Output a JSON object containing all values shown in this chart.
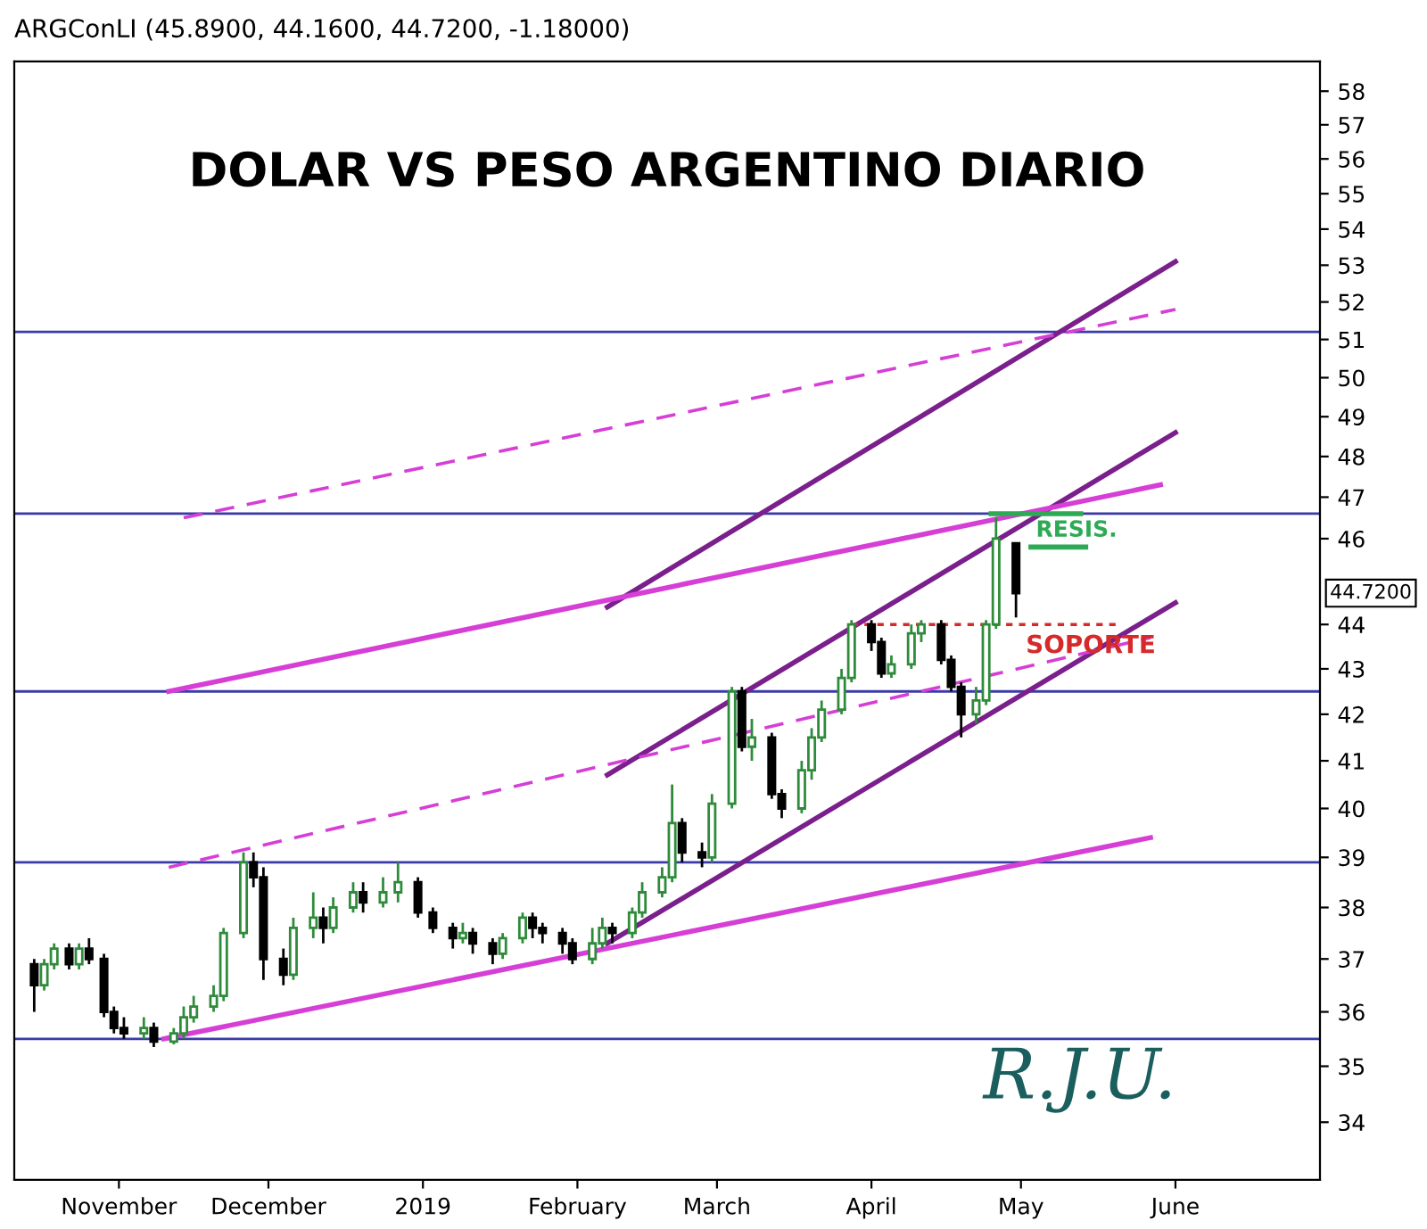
{
  "chart_data": {
    "type": "candlestick",
    "title": "DOLAR VS PESO ARGENTINO DIARIO",
    "subtitle": "ARGConLI (45.8900, 44.1600, 44.7200, -1.18000)",
    "colors": [
      "#000000",
      "#2e8b3a",
      "#2e8b3a",
      "#000000",
      "#2e8b3a",
      "#000000",
      "#000000",
      "#000000",
      "#000000",
      "#2e8b3a",
      "#000000",
      "#2e8b3a",
      "#2e8b3a",
      "#2e8b3a",
      "#2e8b3a",
      "#2e8b3a",
      "#2e8b3a",
      "#000000",
      "#000000",
      "#000000",
      "#2e8b3a",
      "#2e8b3a",
      "#000000",
      "#2e8b3a",
      "#2e8b3a",
      "#000000",
      "#2e8b3a",
      "#2e8b3a",
      "#000000",
      "#000000",
      "#000000",
      "#2e8b3a",
      "#000000",
      "#000000",
      "#2e8b3a",
      "#2e8b3a",
      "#000000",
      "#000000",
      "#000000",
      "#000000",
      "#2e8b3a",
      "#2e8b3a",
      "#000000",
      "#2e8b3a",
      "#2e8b3a",
      "#2e8b3a",
      "#2e8b3a",
      "#000000",
      "#000000",
      "#2e8b3a",
      "#2e8b3a",
      "#000000",
      "#2e8b3a",
      "#000000",
      "#000000",
      "#2e8b3a",
      "#2e8b3a",
      "#2e8b3a",
      "#2e8b3a",
      "#2e8b3a",
      "#000000",
      "#000000",
      "#2e8b3a",
      "#2e8b3a",
      "#2e8b3a",
      "#000000",
      "#000000",
      "#000000",
      "#2e8b3a",
      "#2e8b3a",
      "#2e8b3a",
      "#000000"
    ],
    "x": [
      "2018-10-15",
      "2018-10-17",
      "2018-10-19",
      "2018-10-22",
      "2018-10-24",
      "2018-10-26",
      "2018-10-29",
      "2018-10-31",
      "2018-11-02",
      "2018-11-06",
      "2018-11-08",
      "2018-11-12",
      "2018-11-14",
      "2018-11-16",
      "2018-11-20",
      "2018-11-22",
      "2018-11-26",
      "2018-11-28",
      "2018-11-30",
      "2018-12-04",
      "2018-12-06",
      "2018-12-10",
      "2018-12-12",
      "2018-12-14",
      "2018-12-18",
      "2018-12-20",
      "2018-12-24",
      "2018-12-27",
      "2018-12-31",
      "2019-01-03",
      "2019-01-07",
      "2019-01-09",
      "2019-01-11",
      "2019-01-15",
      "2019-01-17",
      "2019-01-21",
      "2019-01-23",
      "2019-01-25",
      "2019-01-29",
      "2019-01-31",
      "2019-02-04",
      "2019-02-06",
      "2019-02-08",
      "2019-02-12",
      "2019-02-14",
      "2019-02-18",
      "2019-02-20",
      "2019-02-22",
      "2019-02-26",
      "2019-02-28",
      "2019-03-04",
      "2019-03-06",
      "2019-03-08",
      "2019-03-12",
      "2019-03-14",
      "2019-03-18",
      "2019-03-20",
      "2019-03-22",
      "2019-03-26",
      "2019-03-28",
      "2019-04-01",
      "2019-04-03",
      "2019-04-05",
      "2019-04-09",
      "2019-04-11",
      "2019-04-15",
      "2019-04-17",
      "2019-04-19",
      "2019-04-22",
      "2019-04-24",
      "2019-04-26",
      "2019-04-30"
    ],
    "ohlc": [
      [
        36.9,
        37.0,
        36.0,
        36.5
      ],
      [
        36.5,
        37.0,
        36.4,
        36.9
      ],
      [
        36.9,
        37.3,
        36.8,
        37.2
      ],
      [
        37.2,
        37.3,
        36.8,
        36.9
      ],
      [
        36.9,
        37.3,
        36.8,
        37.2
      ],
      [
        37.2,
        37.4,
        36.9,
        37.0
      ],
      [
        37.0,
        37.1,
        35.9,
        36.0
      ],
      [
        36.0,
        36.1,
        35.6,
        35.7
      ],
      [
        35.7,
        35.9,
        35.5,
        35.6
      ],
      [
        35.6,
        35.9,
        35.5,
        35.7
      ],
      [
        35.7,
        35.8,
        35.35,
        35.45
      ],
      [
        35.45,
        35.7,
        35.4,
        35.6
      ],
      [
        35.6,
        36.1,
        35.5,
        35.9
      ],
      [
        35.9,
        36.3,
        35.8,
        36.1
      ],
      [
        36.1,
        36.5,
        36.0,
        36.3
      ],
      [
        36.3,
        37.6,
        36.2,
        37.5
      ],
      [
        37.5,
        39.1,
        37.4,
        38.9
      ],
      [
        38.9,
        39.1,
        38.4,
        38.6
      ],
      [
        38.6,
        38.8,
        36.6,
        37.0
      ],
      [
        37.0,
        37.2,
        36.5,
        36.7
      ],
      [
        36.7,
        37.8,
        36.6,
        37.6
      ],
      [
        37.6,
        38.3,
        37.4,
        37.8
      ],
      [
        37.8,
        38.0,
        37.3,
        37.6
      ],
      [
        37.6,
        38.2,
        37.5,
        38.0
      ],
      [
        38.0,
        38.5,
        37.9,
        38.3
      ],
      [
        38.3,
        38.5,
        37.9,
        38.1
      ],
      [
        38.1,
        38.6,
        38.0,
        38.3
      ],
      [
        38.3,
        38.9,
        38.1,
        38.5
      ],
      [
        38.5,
        38.6,
        37.8,
        37.9
      ],
      [
        37.9,
        38.0,
        37.5,
        37.6
      ],
      [
        37.6,
        37.7,
        37.2,
        37.4
      ],
      [
        37.4,
        37.7,
        37.3,
        37.5
      ],
      [
        37.5,
        37.6,
        37.1,
        37.3
      ],
      [
        37.3,
        37.4,
        36.9,
        37.1
      ],
      [
        37.1,
        37.5,
        37.0,
        37.4
      ],
      [
        37.4,
        37.9,
        37.3,
        37.8
      ],
      [
        37.8,
        37.9,
        37.4,
        37.6
      ],
      [
        37.6,
        37.7,
        37.3,
        37.5
      ],
      [
        37.5,
        37.6,
        37.1,
        37.3
      ],
      [
        37.3,
        37.4,
        36.9,
        37.0
      ],
      [
        37.0,
        37.6,
        36.9,
        37.3
      ],
      [
        37.3,
        37.8,
        37.2,
        37.6
      ],
      [
        37.6,
        37.7,
        37.3,
        37.5
      ],
      [
        37.5,
        38.0,
        37.4,
        37.9
      ],
      [
        37.9,
        38.5,
        37.8,
        38.3
      ],
      [
        38.3,
        38.8,
        38.2,
        38.6
      ],
      [
        38.6,
        40.5,
        38.5,
        39.7
      ],
      [
        39.7,
        39.8,
        38.9,
        39.1
      ],
      [
        39.1,
        39.3,
        38.8,
        39.0
      ],
      [
        39.0,
        40.3,
        38.9,
        40.1
      ],
      [
        40.1,
        42.6,
        40.0,
        42.5
      ],
      [
        42.5,
        42.6,
        41.2,
        41.3
      ],
      [
        41.3,
        41.9,
        41.0,
        41.5
      ],
      [
        41.5,
        41.6,
        40.2,
        40.3
      ],
      [
        40.3,
        40.4,
        39.8,
        40.0
      ],
      [
        40.0,
        41.0,
        39.9,
        40.8
      ],
      [
        40.8,
        41.7,
        40.6,
        41.5
      ],
      [
        41.5,
        42.3,
        41.4,
        42.1
      ],
      [
        42.1,
        43.0,
        42.0,
        42.8
      ],
      [
        42.8,
        44.1,
        42.7,
        44.0
      ],
      [
        44.0,
        44.1,
        43.4,
        43.6
      ],
      [
        43.6,
        43.7,
        42.8,
        42.9
      ],
      [
        42.9,
        43.3,
        42.8,
        43.1
      ],
      [
        43.1,
        44.0,
        43.0,
        43.8
      ],
      [
        43.8,
        44.1,
        43.6,
        44.0
      ],
      [
        44.0,
        44.1,
        43.1,
        43.2
      ],
      [
        43.2,
        43.3,
        42.5,
        42.6
      ],
      [
        42.6,
        42.7,
        41.5,
        42.0
      ],
      [
        42.0,
        42.6,
        41.8,
        42.3
      ],
      [
        42.3,
        44.1,
        42.2,
        44.0
      ],
      [
        44.0,
        46.5,
        43.9,
        46.0
      ],
      [
        45.89,
        45.89,
        44.16,
        44.72
      ]
    ],
    "series": [
      {
        "type": "line",
        "color": "#7a1f8c",
        "x": [
          "2019-02-07",
          "2019-06-01"
        ],
        "values": [
          44.4,
          53.1
        ]
      },
      {
        "type": "line",
        "color": "#7a1f8c",
        "x": [
          "2019-02-07",
          "2019-06-01"
        ],
        "values": [
          40.7,
          48.6
        ]
      },
      {
        "type": "line",
        "color": "#7a1f8c",
        "x": [
          "2019-02-07",
          "2019-06-01"
        ],
        "values": [
          37.3,
          44.5
        ]
      },
      {
        "type": "line",
        "color": "#d63fd6",
        "x": [
          "2018-11-11",
          "2019-05-29"
        ],
        "values": [
          42.5,
          47.3
        ]
      },
      {
        "type": "line",
        "color": "#d63fd6",
        "line_style": "dashed",
        "x": [
          "2018-11-14",
          "2019-06-01"
        ],
        "values": [
          46.5,
          51.8
        ]
      },
      {
        "type": "line",
        "color": "#d63fd6",
        "line_style": "dashed",
        "x": [
          "2018-11-11",
          "2019-05-27"
        ],
        "values": [
          38.8,
          43.7
        ]
      },
      {
        "type": "line",
        "color": "#d63fd6",
        "x": [
          "2018-11-10",
          "2019-05-27"
        ],
        "values": [
          35.5,
          39.4
        ]
      },
      {
        "type": "line",
        "color": "#d62a2a",
        "line_style": "dotted",
        "x": [
          "2019-03-28",
          "2019-05-20"
        ],
        "values": [
          44.0,
          44.0
        ]
      },
      {
        "type": "line",
        "color": "#2eaa55",
        "x": [
          "2019-04-25",
          "2019-05-13"
        ],
        "values": [
          46.6,
          46.6
        ]
      },
      {
        "type": "line",
        "color": "#2eaa55",
        "x": [
          "2019-05-03",
          "2019-05-14"
        ],
        "values": [
          45.8,
          45.8
        ]
      }
    ],
    "ref_lines": [
      {
        "axis": "y",
        "value": 51.2,
        "color": "#3a3aa8"
      },
      {
        "axis": "y",
        "value": 46.6,
        "color": "#3a3aa8"
      },
      {
        "axis": "y",
        "value": 42.5,
        "color": "#3a3aa8"
      },
      {
        "axis": "y",
        "value": 38.9,
        "color": "#3a3aa8"
      },
      {
        "axis": "y",
        "value": 35.5,
        "color": "#3a3aa8"
      }
    ],
    "annotations": [
      "RESIS.",
      "SOPORTE",
      "44.7200",
      "R.J.U."
    ],
    "log": true,
    "ylim": [
      33.0,
      58.9
    ],
    "yticks": [
      34,
      35,
      36,
      37,
      38,
      39,
      40,
      41,
      42,
      43,
      44,
      46,
      47,
      48,
      49,
      50,
      51,
      52,
      53,
      54,
      55,
      56,
      57,
      58
    ],
    "xlim": [
      "2018-10-11",
      "2019-06-30"
    ],
    "xticks": [
      {
        "value": "2018-11-01",
        "label": "November"
      },
      {
        "value": "2018-12-01",
        "label": "December"
      },
      {
        "value": "2019-01-01",
        "label": "2019"
      },
      {
        "value": "2019-02-01",
        "label": "February"
      },
      {
        "value": "2019-03-01",
        "label": "March"
      },
      {
        "value": "2019-04-01",
        "label": "April"
      },
      {
        "value": "2019-05-01",
        "label": "May"
      },
      {
        "value": "2019-06-01",
        "label": "June"
      }
    ],
    "grid": false,
    "legend": false
  }
}
